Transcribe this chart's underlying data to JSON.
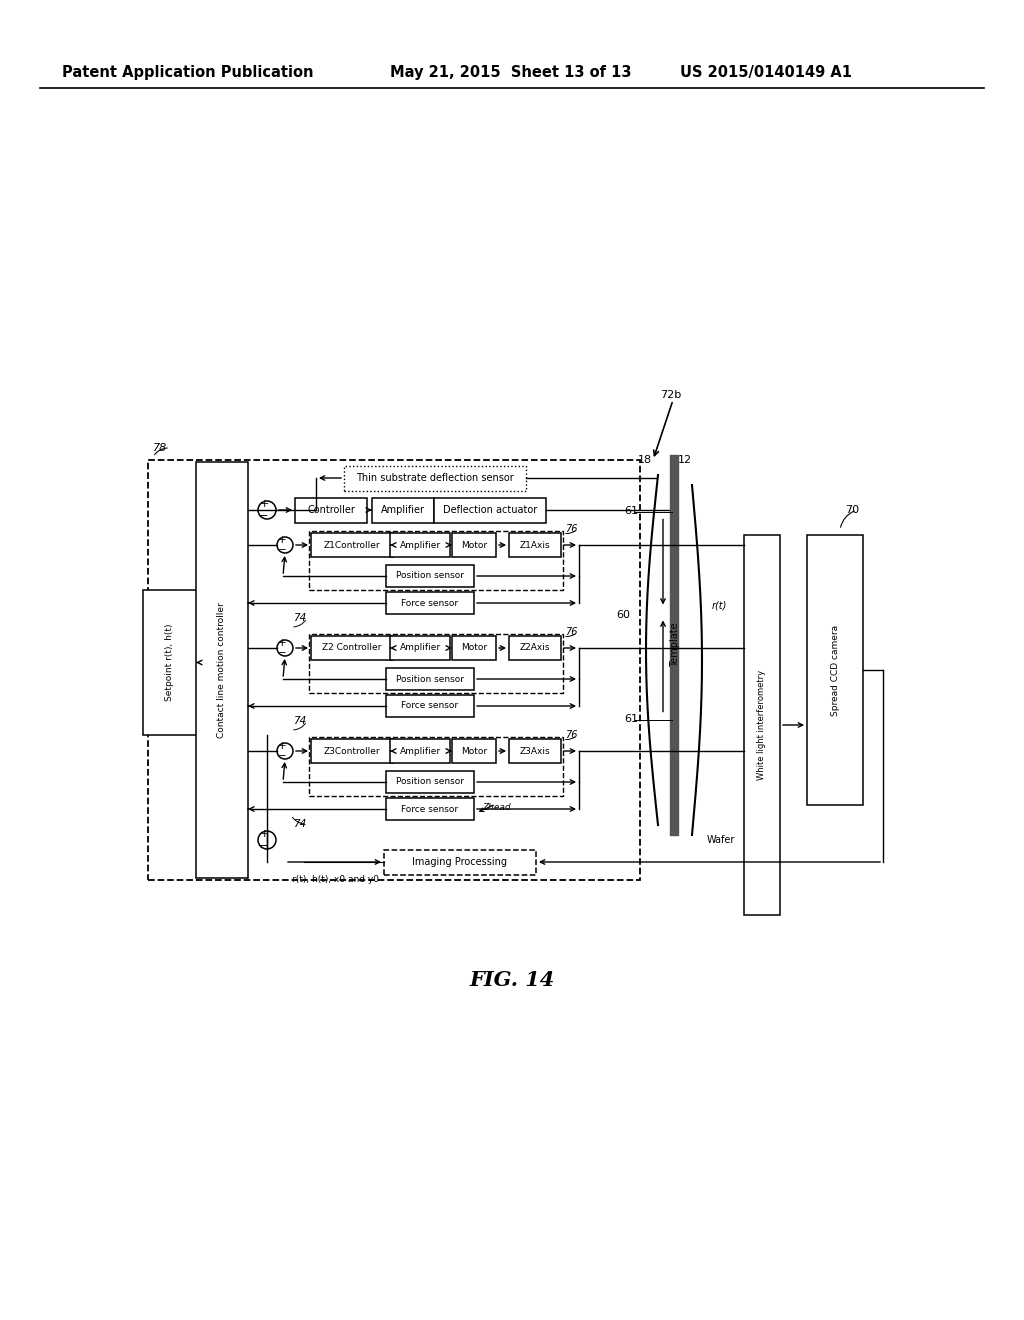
{
  "title": "FIG. 14",
  "header_left": "Patent Application Publication",
  "header_mid": "May 21, 2015  Sheet 13 of 13",
  "header_right": "US 2015/0140149 A1",
  "bg_color": "#ffffff",
  "line_color": "#000000",
  "header_fontsize": 10.5
}
